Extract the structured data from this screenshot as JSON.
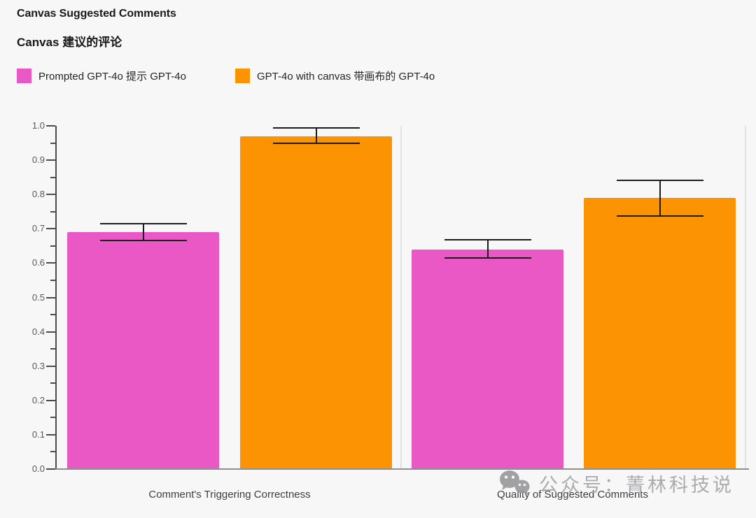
{
  "header": {
    "title_en": "Canvas Suggested Comments",
    "title_zh": "Canvas 建议的评论"
  },
  "legend": [
    {
      "label": "Prompted GPT-4o 提示 GPT-4o",
      "color": "#EA58C5"
    },
    {
      "label": "GPT-4o with canvas 带画布的 GPT-4o",
      "color": "#FC9303"
    }
  ],
  "chart_data": {
    "type": "bar",
    "title": "Canvas Suggested Comments",
    "subtitle": "Canvas 建议的评论",
    "categories": [
      "Comment's Triggering Correctness",
      "Quality of Suggested Comments"
    ],
    "series": [
      {
        "name": "Prompted GPT-4o 提示 GPT-4o",
        "color": "#EA58C5",
        "values": [
          0.69,
          0.64
        ],
        "error_low": [
          0.665,
          0.615
        ],
        "error_high": [
          0.715,
          0.669
        ]
      },
      {
        "name": "GPT-4o with canvas 带画布的 GPT-4o",
        "color": "#FC9303",
        "values": [
          0.97,
          0.79
        ],
        "error_low": [
          0.949,
          0.737
        ],
        "error_high": [
          0.993,
          0.842
        ]
      }
    ],
    "ylim": [
      0,
      1.0
    ],
    "ytick_step": 0.1,
    "ytick_minor_step": 0.05,
    "grid": false,
    "error_bars": true,
    "legend_position": "top-left"
  },
  "watermark": {
    "text": "公众号：菁林科技说",
    "icon": "wechat-icon"
  },
  "colors": {
    "background": "#F7F7F8",
    "axis": "#4B4B4E",
    "baseline": "#8F8F92",
    "separator": "#E3E3E5",
    "error_bar": "#1C1C1E",
    "tick_label": "#58585B",
    "category_label": "#3D3D40",
    "title": "#191919",
    "watermark": "#ACACAF"
  }
}
